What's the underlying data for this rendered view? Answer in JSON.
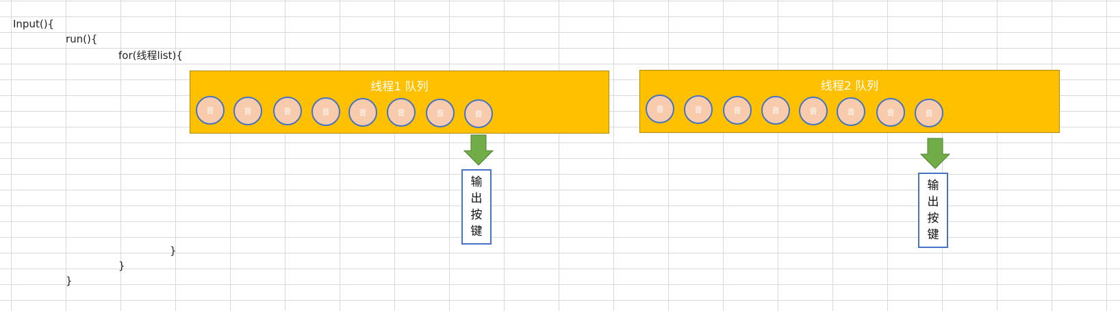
{
  "code": {
    "line1": "Input(){",
    "line2": "run(){",
    "line3": "for(线程list){",
    "close1": "}",
    "close2": "}",
    "close3": "}"
  },
  "queues": [
    {
      "title": "线程1 队列",
      "items": [
        "音",
        "音",
        "音",
        "音",
        "音",
        "音",
        "音",
        "音"
      ],
      "output_chars": [
        "输",
        "出",
        "按",
        "键"
      ]
    },
    {
      "title": "线程2 队列",
      "items": [
        "音",
        "音",
        "音",
        "音",
        "音",
        "音",
        "音",
        "音"
      ],
      "output_chars": [
        "输",
        "出",
        "按",
        "键"
      ]
    }
  ],
  "colors": {
    "queue_fill": "#ffc000",
    "circle_fill": "#f8cbad",
    "circle_border": "#4472c4",
    "arrow": "#70ad47",
    "box_border": "#4472c4"
  }
}
